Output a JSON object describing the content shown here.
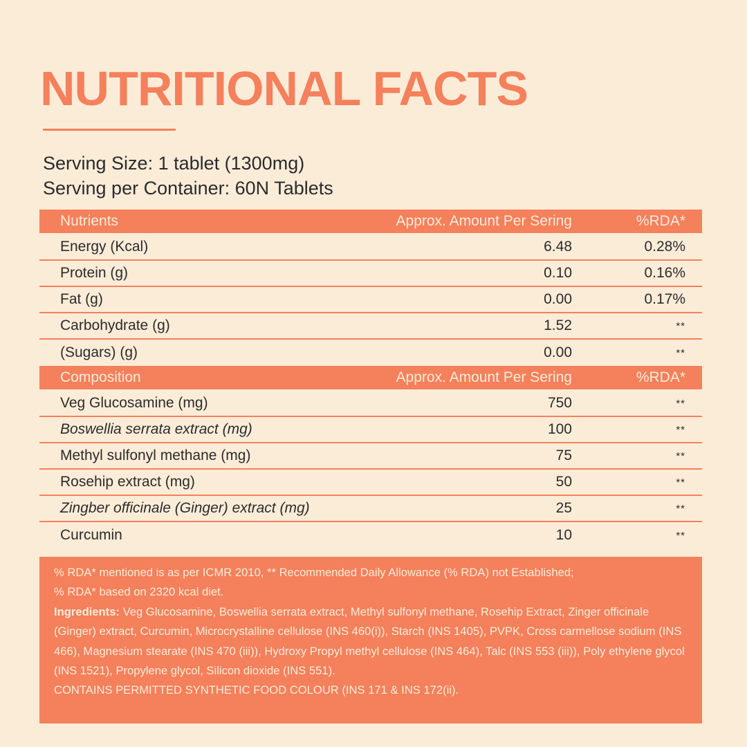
{
  "title": "NUTRITIONAL FACTS",
  "serving": {
    "size": "Serving Size: 1 tablet (1300mg)",
    "per_container": "Serving per Container: 60N Tablets"
  },
  "nutrients": {
    "header": [
      "Nutrients",
      "Approx. Amount Per Sering",
      "%RDA*"
    ],
    "rows": [
      {
        "name": "Energy (Kcal)",
        "amount": "6.48",
        "rda": "0.28%"
      },
      {
        "name": "Protein (g)",
        "amount": "0.10",
        "rda": "0.16%"
      },
      {
        "name": "Fat (g)",
        "amount": "0.00",
        "rda": "0.17%"
      },
      {
        "name": "Carbohydrate (g)",
        "amount": "1.52",
        "rda": "**"
      },
      {
        "name": "(Sugars) (g)",
        "amount": "0.00",
        "rda": "**"
      }
    ]
  },
  "composition": {
    "header": [
      "Composition",
      "Approx. Amount Per Sering",
      "%RDA*"
    ],
    "rows": [
      {
        "name": "Veg Glucosamine (mg)",
        "amount": "750",
        "rda": "**"
      },
      {
        "name": "Boswellia serrata extract (mg)",
        "amount": "100",
        "rda": "**"
      },
      {
        "name": "Methyl sulfonyl methane (mg)",
        "amount": "75",
        "rda": "**"
      },
      {
        "name": "Rosehip extract (mg)",
        "amount": "50",
        "rda": "**"
      },
      {
        "name": "Zingber officinale (Ginger) extract (mg)",
        "amount": "25",
        "rda": "**"
      },
      {
        "name": "Curcumin",
        "amount": "10",
        "rda": "**"
      }
    ]
  },
  "notes": {
    "rda_line1": "% RDA* mentioned is as per ICMR 2010, ** Recommended Daily Allowance (% RDA) not Established;",
    "rda_line2": "% RDA* based on 2320 kcal diet.",
    "ingredients_label": "Ingredients:",
    "ingredients_text": " Veg Glucosamine, Boswellia serrata extract, Methyl sulfonyl methane, Rosehip Extract, Zinger officinale (Ginger) extract, Curcumin, Microcrystalline cellulose (INS 460(i)), Starch (INS 1405), PVPK, Cross carmellose sodium (INS 466), Magnesium stearate (INS 470 (iii)), Hydroxy Propyl methyl cellulose (INS 464), Talc (INS 553 (iii)), Poly ethylene glycol (INS 1521), Propylene glycol, Silicon dioxide (INS 551).",
    "contains": "CONTAINS PERMITTED SYNTHETIC FOOD COLOUR (INS 171 & INS 172(ii)."
  },
  "colors": {
    "accent": "#f4805c",
    "background": "#fbecd8",
    "text": "#2b2b2b"
  }
}
